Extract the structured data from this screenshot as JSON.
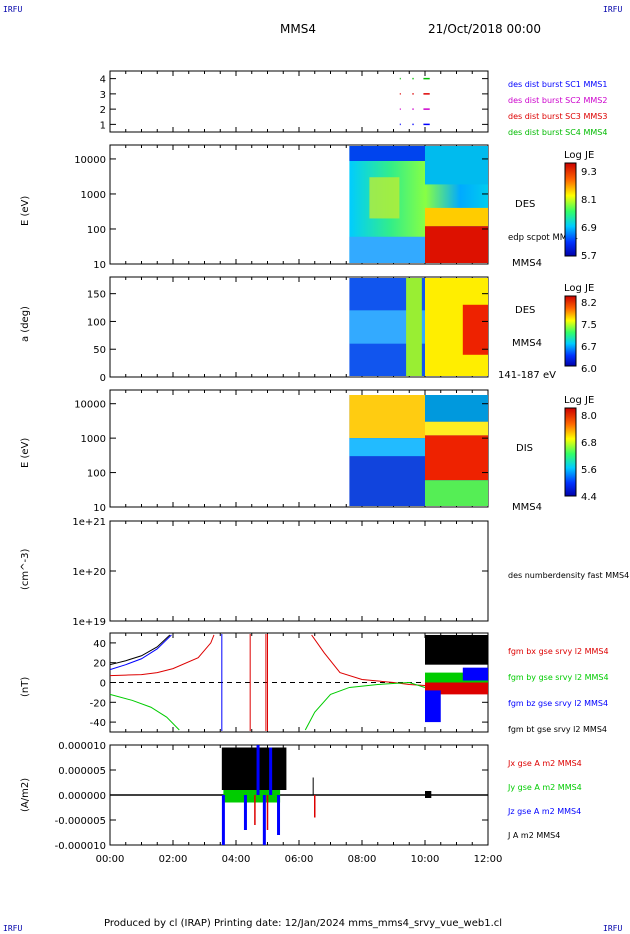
{
  "header": {
    "corner_tl": "IRFU",
    "corner_tr": "IRFU",
    "corner_bl": "IRFU",
    "corner_br": "IRFU",
    "spacecraft": "MMS4",
    "date": "21/Oct/2018 00:00"
  },
  "footer": {
    "text": "Produced by cl (IRAP)   Printing date: 12/Jan/2024   mms_mms4_srvy_vue_web1.cl"
  },
  "chart_data": [
    {
      "type": "scatter",
      "panel": "burst-availability",
      "xlabel": "",
      "ylabel": "",
      "ylim": [
        0.5,
        4.5
      ],
      "yticks": [
        "1",
        "2",
        "3",
        "4"
      ],
      "series": [
        {
          "name": "des dist burst SC1 MMS1",
          "color": "#0000ff",
          "level": 1
        },
        {
          "name": "des dist burst SC2 MMS2",
          "color": "#cc00cc",
          "level": 2
        },
        {
          "name": "des dist burst SC3 MMS3",
          "color": "#dd0000",
          "level": 3
        },
        {
          "name": "des dist burst SC4 MMS4",
          "color": "#00bb00",
          "level": 4
        }
      ]
    },
    {
      "type": "heatmap",
      "panel": "des-energy",
      "ylabel": "E (eV)",
      "yscale": "log",
      "ylim": [
        10,
        25000
      ],
      "yticks": [
        "10",
        "100",
        "1000",
        "10000"
      ],
      "label": "DES",
      "overlay": "edp scpot MMS4",
      "colorbar": {
        "title": "Log JE",
        "ticks": [
          "9.3",
          "8.1",
          "6.9",
          "5.7"
        ],
        "range": [
          5.7,
          9.5
        ]
      },
      "data_start_hour": 7.6
    },
    {
      "type": "heatmap",
      "panel": "des-pitch",
      "ylabel": "a (deg)",
      "ylim": [
        0,
        180
      ],
      "yticks": [
        "0",
        "50",
        "100",
        "150"
      ],
      "label": "DES",
      "label2": "MMS4",
      "energy_range": "141-187 eV",
      "colorbar": {
        "title": "Log JE",
        "ticks": [
          "8.2",
          "7.5",
          "6.7",
          "6.0"
        ],
        "range": [
          6.0,
          8.4
        ]
      },
      "data_start_hour": 7.6
    },
    {
      "type": "heatmap",
      "panel": "dis-energy",
      "ylabel": "E (eV)",
      "yscale": "log",
      "ylim": [
        10,
        25000
      ],
      "yticks": [
        "10",
        "100",
        "1000",
        "10000"
      ],
      "label": "DIS",
      "colorbar": {
        "title": "Log JE",
        "ticks": [
          "8.0",
          "6.8",
          "5.6",
          "4.4"
        ],
        "range": [
          4.4,
          8.2
        ]
      },
      "data_start_hour": 7.6
    },
    {
      "type": "line",
      "panel": "density",
      "ylabel": "(cm^-3)",
      "yscale": "log",
      "ylim": [
        1e+19,
        1e+21
      ],
      "yticks": [
        "1e+19",
        "1e+20",
        "1e+21"
      ],
      "series": [
        {
          "name": "des numberdensity fast MMS4",
          "color": "#000000"
        }
      ]
    },
    {
      "type": "line",
      "panel": "fgm",
      "ylabel": "(nT)",
      "ylim": [
        -50,
        50
      ],
      "yticks": [
        "40",
        "20",
        "0",
        "-20",
        "-40"
      ],
      "series": [
        {
          "name": "fgm bx gse srvy l2 MMS4",
          "color": "#dd0000"
        },
        {
          "name": "fgm by gse srvy l2 MMS4",
          "color": "#00cc00"
        },
        {
          "name": "fgm bz gse srvy l2 MMS4",
          "color": "#0000ff"
        },
        {
          "name": "fgm bt gse srvy l2 MMS4",
          "color": "#000000"
        }
      ]
    },
    {
      "type": "line",
      "panel": "current",
      "ylabel": "(A/m2)",
      "ylim": [
        -1e-05,
        1e-05
      ],
      "yticks": [
        "0.000010",
        "0.000005",
        "0.000000",
        "-0.000005",
        "-0.000010"
      ],
      "xticks": [
        "00:00",
        "02:00",
        "04:00",
        "06:00",
        "08:00",
        "10:00",
        "12:00"
      ],
      "series": [
        {
          "name": "Jx gse A m2 MMS4",
          "color": "#dd0000"
        },
        {
          "name": "Jy gse A m2 MMS4",
          "color": "#00cc00"
        },
        {
          "name": "Jz gse A m2 MMS4",
          "color": "#0000ff"
        },
        {
          "name": "J A m2 MMS4",
          "color": "#000000"
        }
      ]
    }
  ]
}
